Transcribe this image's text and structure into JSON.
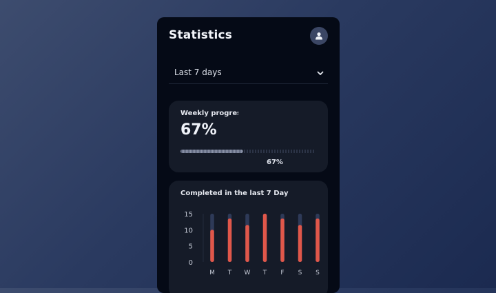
{
  "header": {
    "title": "Statistics"
  },
  "filter": {
    "selected": "Last 7 days"
  },
  "weekly": {
    "label": "Weekly progress",
    "value_text": "67%",
    "progress": 0.67,
    "progress_text": "67%"
  },
  "chart_data": {
    "type": "bar",
    "title": "Completed in the last 7 Day",
    "categories": [
      "M",
      "T",
      "W",
      "T",
      "F",
      "S",
      "S"
    ],
    "y_ticks": [
      15,
      10,
      5,
      0
    ],
    "ylim": [
      0,
      15
    ],
    "series": [
      {
        "values": [
          10,
          13.5,
          11.5,
          15,
          13.5,
          11.5,
          13.5
        ],
        "color": "#e0574a"
      },
      {
        "values": [
          15,
          15,
          15,
          15,
          15,
          15,
          15
        ],
        "color": "#2e3a58"
      }
    ]
  }
}
